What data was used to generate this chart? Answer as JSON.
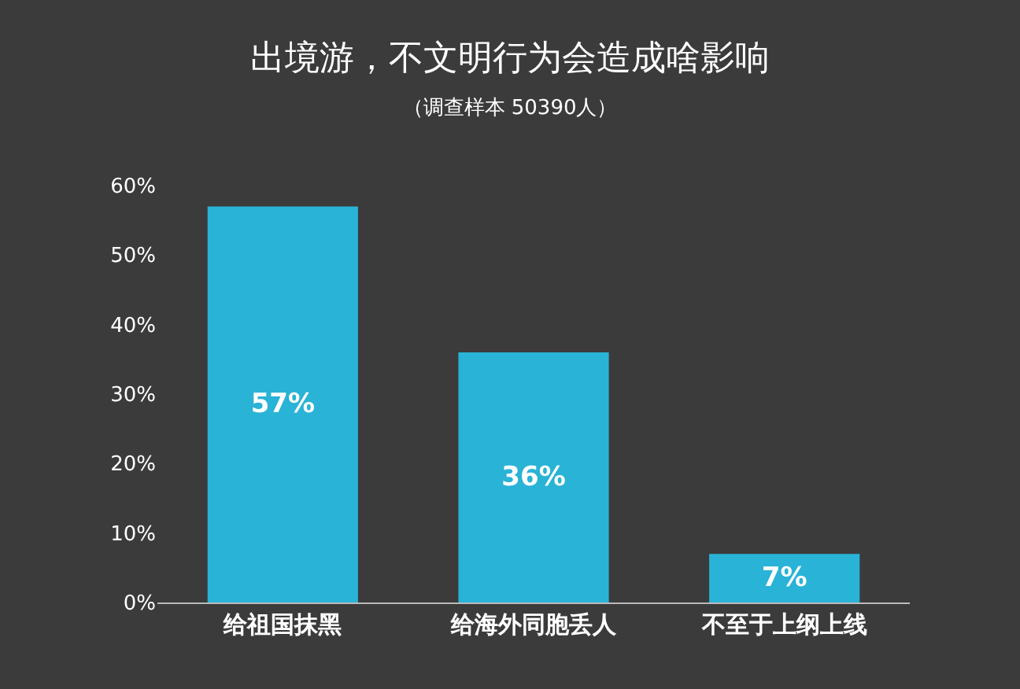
{
  "chart_data": {
    "type": "bar",
    "title": "出境游，不文明行为会造成啥影响",
    "subtitle": "（调查样本 50390人）",
    "categories": [
      "给祖国抹黑",
      "给海外同胞丢人",
      "不至于上纲上线"
    ],
    "values": [
      57,
      36,
      7
    ],
    "value_labels": [
      "57%",
      "36%",
      "7%"
    ],
    "color": "#29b3d6",
    "ylim": [
      0,
      60
    ],
    "yticks": [
      {
        "value": 0,
        "label": "0%"
      },
      {
        "value": 10,
        "label": "10%"
      },
      {
        "value": 20,
        "label": "20%"
      },
      {
        "value": 30,
        "label": "30%"
      },
      {
        "value": 40,
        "label": "40%"
      },
      {
        "value": 50,
        "label": "50%"
      },
      {
        "value": 60,
        "label": "60%"
      }
    ],
    "grid": false,
    "legend": false
  }
}
